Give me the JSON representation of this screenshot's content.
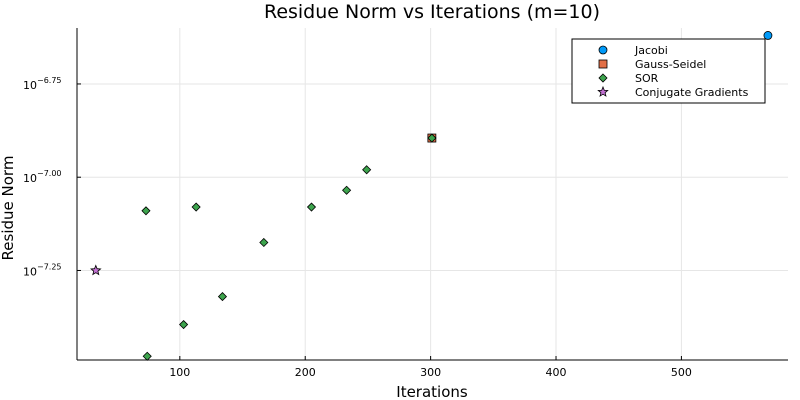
{
  "chart_data": {
    "type": "scatter",
    "title": "Residue Norm vs Iterations (m=10)",
    "xlabel": "Iterations",
    "ylabel": "Residue Norm",
    "yscale": "log10",
    "xlim": [
      18,
      585
    ],
    "ylim": [
      -7.49,
      -6.6
    ],
    "x_ticks": [
      100,
      200,
      300,
      400,
      500
    ],
    "x_tick_labels": [
      "100",
      "200",
      "300",
      "400",
      "500"
    ],
    "y_ticks": [
      {
        "value": -6.75,
        "base": "10",
        "exp": "−6.75"
      },
      {
        "value": -7.0,
        "base": "10",
        "exp": "−7.00"
      },
      {
        "value": -7.25,
        "base": "10",
        "exp": "−7.25"
      }
    ],
    "grid": true,
    "legend_position": "top-right",
    "series": [
      {
        "name": "Jacobi",
        "marker": "circle",
        "color": "#009af9",
        "x": [
          569
        ],
        "y": [
          -6.62
        ]
      },
      {
        "name": "Gauss-Seidel",
        "marker": "square",
        "color": "#e26f46",
        "x": [
          301
        ],
        "y": [
          -6.895
        ]
      },
      {
        "name": "SOR",
        "marker": "diamond",
        "color": "#3da44d",
        "x": [
          301,
          73,
          113,
          205,
          233,
          249,
          167,
          134,
          103,
          74
        ],
        "y": [
          -6.895,
          -7.09,
          -7.08,
          -7.08,
          -7.035,
          -6.98,
          -7.175,
          -7.32,
          -7.395,
          -7.48
        ]
      },
      {
        "name": "Conjugate Gradients",
        "marker": "star",
        "color": "#c271d2",
        "x": [
          33
        ],
        "y": [
          -7.25
        ]
      }
    ]
  }
}
